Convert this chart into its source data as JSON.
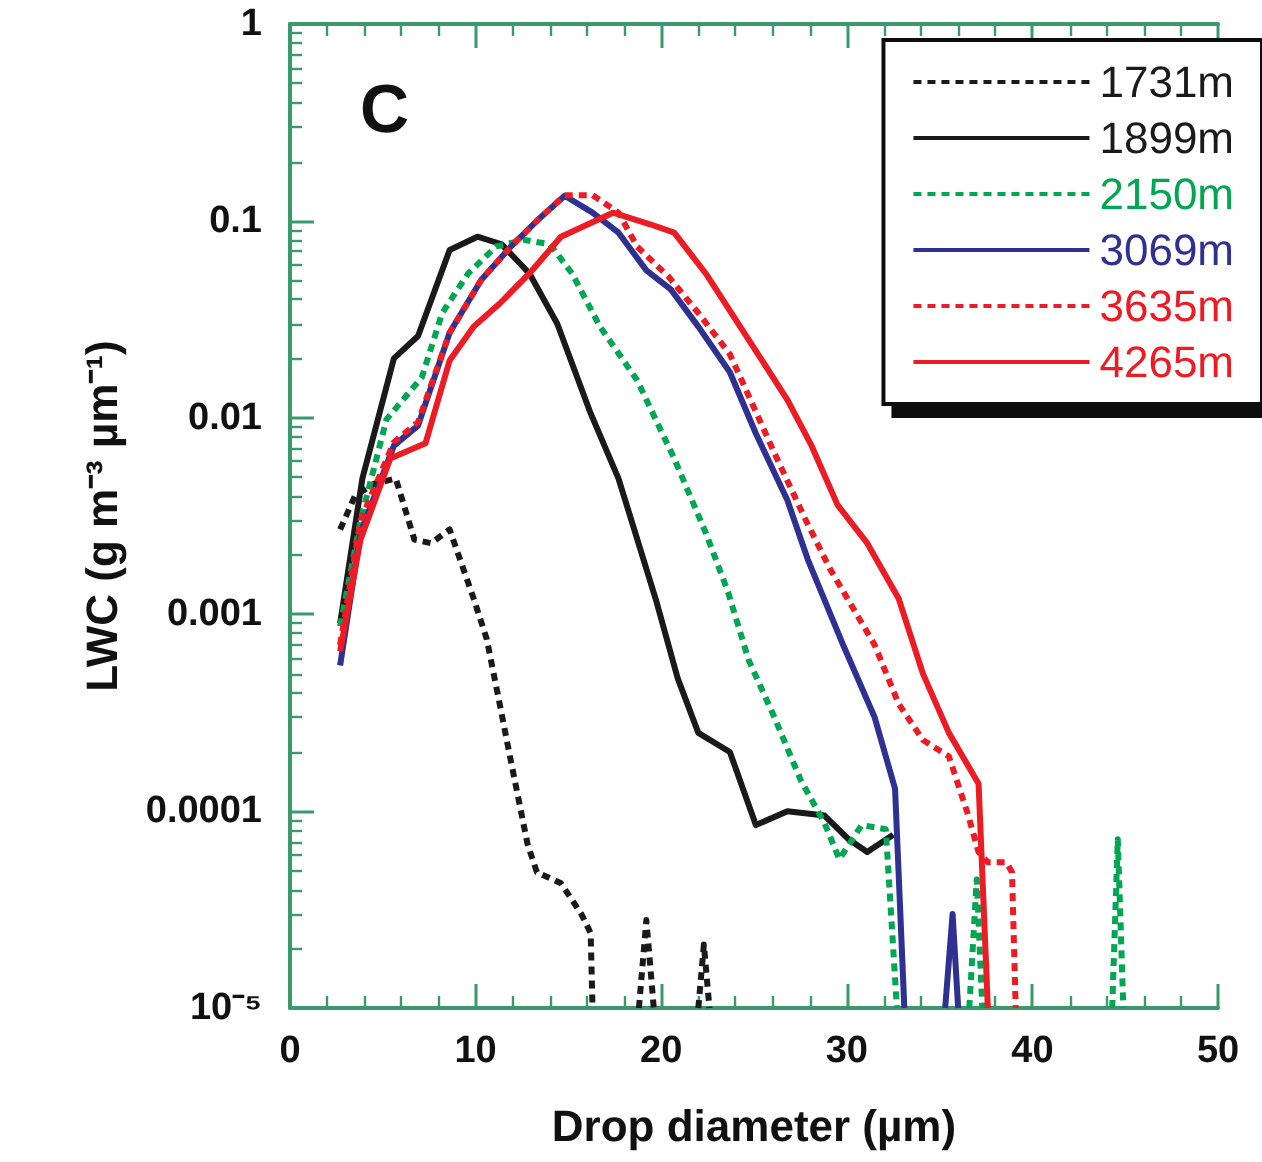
{
  "chart_data": {
    "type": "line",
    "xlabel": "Drop diameter (µm)",
    "ylabel": "LWC (g m⁻³ µm⁻¹)",
    "annotations": [
      "C"
    ],
    "xlim": [
      0,
      50
    ],
    "xticks": [
      0,
      10,
      20,
      30,
      40,
      50
    ],
    "ylim": [
      1e-05,
      1
    ],
    "yticks": [
      {
        "value": 1e-05,
        "label": "10⁻⁵"
      },
      0.0001,
      0.001,
      0.01,
      0.1,
      1
    ],
    "log": "y",
    "grid": false,
    "legend": "top right",
    "marker": "none",
    "series": [
      {
        "name": "1731m",
        "color": "#1a1a1a",
        "line_style": "dotted",
        "x": [
          2.7,
          3.5,
          4.5,
          5.7,
          6.7,
          7.6,
          8.6,
          9.9,
          10.6,
          11.3,
          11.9,
          12.8,
          13.3,
          14.6,
          15.7,
          16.2,
          16.3,
          17.5,
          18.8,
          19.2,
          19.6,
          20.8,
          22.0,
          22.3,
          22.6
        ],
        "values": [
          0.0027,
          0.004,
          0.0046,
          0.0049,
          0.0024,
          0.0023,
          0.0027,
          0.0012,
          0.00075,
          0.00035,
          0.00018,
          6.8e-05,
          4.9e-05,
          4.3e-05,
          3e-05,
          2.4e-05,
          1e-05,
          null,
          1e-05,
          2.8e-05,
          1e-05,
          null,
          1e-05,
          2.1e-05,
          1e-05
        ]
      },
      {
        "name": "1899m",
        "color": "#1a1a1a",
        "line_style": "solid",
        "x": [
          2.7,
          3.9,
          5.6,
          6.9,
          8.6,
          10.1,
          11.4,
          12.9,
          14.4,
          16.2,
          17.7,
          19.7,
          20.9,
          22.0,
          23.7,
          25.1,
          26.8,
          28.8,
          30.1,
          31.1,
          32.5
        ],
        "values": [
          0.0009,
          0.0049,
          0.02,
          0.026,
          0.071,
          0.083,
          0.076,
          0.054,
          0.03,
          0.0105,
          0.0049,
          0.0012,
          0.00047,
          0.00025,
          0.0002,
          8.5e-05,
          0.0001,
          9.5e-05,
          7.2e-05,
          6.2e-05,
          7.6e-05
        ]
      },
      {
        "name": "2150m",
        "color": "#00a651",
        "line_style": "dotted",
        "x": [
          2.7,
          3.8,
          5.2,
          7.1,
          8.2,
          9.6,
          11.1,
          12.6,
          14.0,
          15.2,
          16.7,
          18.7,
          20.7,
          22.4,
          23.6,
          24.7,
          26.1,
          27.5,
          28.8,
          29.6,
          30.8,
          32.1,
          32.7,
          34.6,
          36.6,
          37.0,
          37.3,
          40.8,
          44.3,
          44.6,
          44.9
        ],
        "values": [
          0.00087,
          0.003,
          0.0098,
          0.016,
          0.034,
          0.054,
          0.074,
          0.08,
          0.076,
          0.054,
          0.029,
          0.0155,
          0.0062,
          0.0026,
          0.0013,
          0.00059,
          0.0003,
          0.000145,
          8.7e-05,
          5.7e-05,
          8.5e-05,
          8.1e-05,
          1e-05,
          null,
          1e-05,
          4.5e-05,
          1e-05,
          null,
          1e-05,
          7.2e-05,
          1e-05
        ]
      },
      {
        "name": "3069m",
        "color": "#2e3192",
        "line_style": "solid",
        "x": [
          2.7,
          3.8,
          5.6,
          6.9,
          8.6,
          10.3,
          11.9,
          13.3,
          14.8,
          16.3,
          17.7,
          19.2,
          20.5,
          22.0,
          23.7,
          25.1,
          26.8,
          27.9,
          29.8,
          31.5,
          32.6,
          33.1,
          34.2,
          35.3,
          35.7,
          36.0
        ],
        "values": [
          0.00055,
          0.0026,
          0.0072,
          0.0091,
          0.027,
          0.05,
          0.074,
          0.1,
          0.134,
          0.11,
          0.087,
          0.056,
          0.045,
          0.029,
          0.017,
          0.0083,
          0.0038,
          0.0019,
          0.0007,
          0.0003,
          0.00013,
          1e-05,
          null,
          1e-05,
          3e-05,
          1e-05
        ]
      },
      {
        "name": "3635m",
        "color": "#ed1c24",
        "line_style": "dotted",
        "x": [
          2.7,
          3.8,
          5.6,
          6.9,
          8.6,
          10.3,
          11.9,
          13.3,
          14.8,
          16.3,
          17.7,
          18.7,
          20.4,
          22.0,
          23.7,
          24.7,
          26.1,
          27.8,
          29.1,
          31.5,
          32.8,
          34.1,
          35.5,
          36.5,
          37.1,
          37.6,
          38.6,
          38.9,
          39.1
        ],
        "values": [
          0.0007,
          0.003,
          0.0075,
          0.0095,
          0.027,
          0.05,
          0.074,
          0.1,
          0.135,
          0.135,
          0.11,
          0.074,
          0.052,
          0.034,
          0.021,
          0.013,
          0.0066,
          0.003,
          0.0017,
          0.0007,
          0.00035,
          0.00023,
          0.00019,
          9.8e-05,
          6.2e-05,
          5.5e-05,
          5.5e-05,
          4.9e-05,
          1e-05
        ]
      },
      {
        "name": "4265m",
        "color": "#ed1c24",
        "line_style": "solid",
        "x": [
          2.7,
          3.8,
          5.4,
          7.3,
          8.6,
          9.9,
          11.3,
          12.9,
          14.6,
          17.4,
          19.4,
          20.7,
          22.4,
          24.7,
          26.8,
          28.1,
          29.5,
          31.1,
          32.8,
          34.1,
          35.5,
          37.1,
          37.6
        ],
        "values": [
          0.00065,
          0.0024,
          0.0062,
          0.0074,
          0.0195,
          0.029,
          0.038,
          0.054,
          0.083,
          0.11,
          0.096,
          0.087,
          0.054,
          0.025,
          0.0123,
          0.0072,
          0.0036,
          0.0023,
          0.0012,
          0.0005,
          0.00025,
          0.000138,
          1e-05
        ]
      }
    ]
  }
}
